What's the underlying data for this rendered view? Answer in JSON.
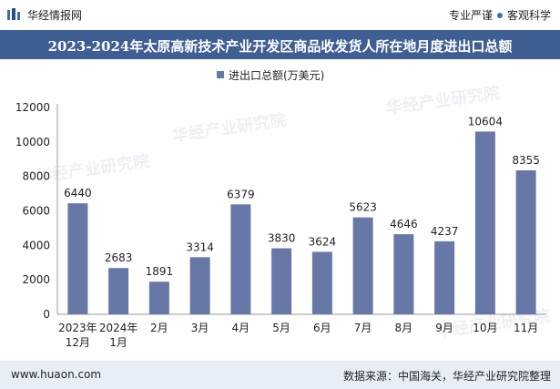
{
  "header": {
    "brand": "华经情报网",
    "tagline_left": "专业严谨",
    "tagline_right": "客观科学",
    "title": "2023-2024年太原高新技术产业开发区商品收发货人所在地月度进出口总额"
  },
  "footer": {
    "website": "www.huaon.com",
    "source": "数据来源：中国海关，华经产业研究院整理"
  },
  "watermark": "华经产业研究院",
  "colors": {
    "bar": "#6878a6",
    "title_bg": "#3f5f93",
    "footer_bg": "#e8eef6"
  },
  "chart_data": {
    "type": "bar",
    "title": "2023-2024年太原高新技术产业开发区商品收发货人所在地月度进出口总额",
    "legend": "进出口总额(万美元)",
    "legend_position": "top-center",
    "categories": [
      "2023年12月",
      "2024年1月",
      "2月",
      "3月",
      "4月",
      "5月",
      "6月",
      "7月",
      "8月",
      "9月",
      "10月",
      "11月"
    ],
    "series": [
      {
        "name": "进出口总额(万美元)",
        "values": [
          6440,
          2683,
          1891,
          3314,
          6379,
          3830,
          3624,
          5623,
          4646,
          4237,
          10604,
          8355
        ]
      }
    ],
    "yticks": [
      0,
      2000,
      4000,
      6000,
      8000,
      10000,
      12000
    ],
    "ylim": [
      0,
      12000
    ],
    "grid": false
  }
}
